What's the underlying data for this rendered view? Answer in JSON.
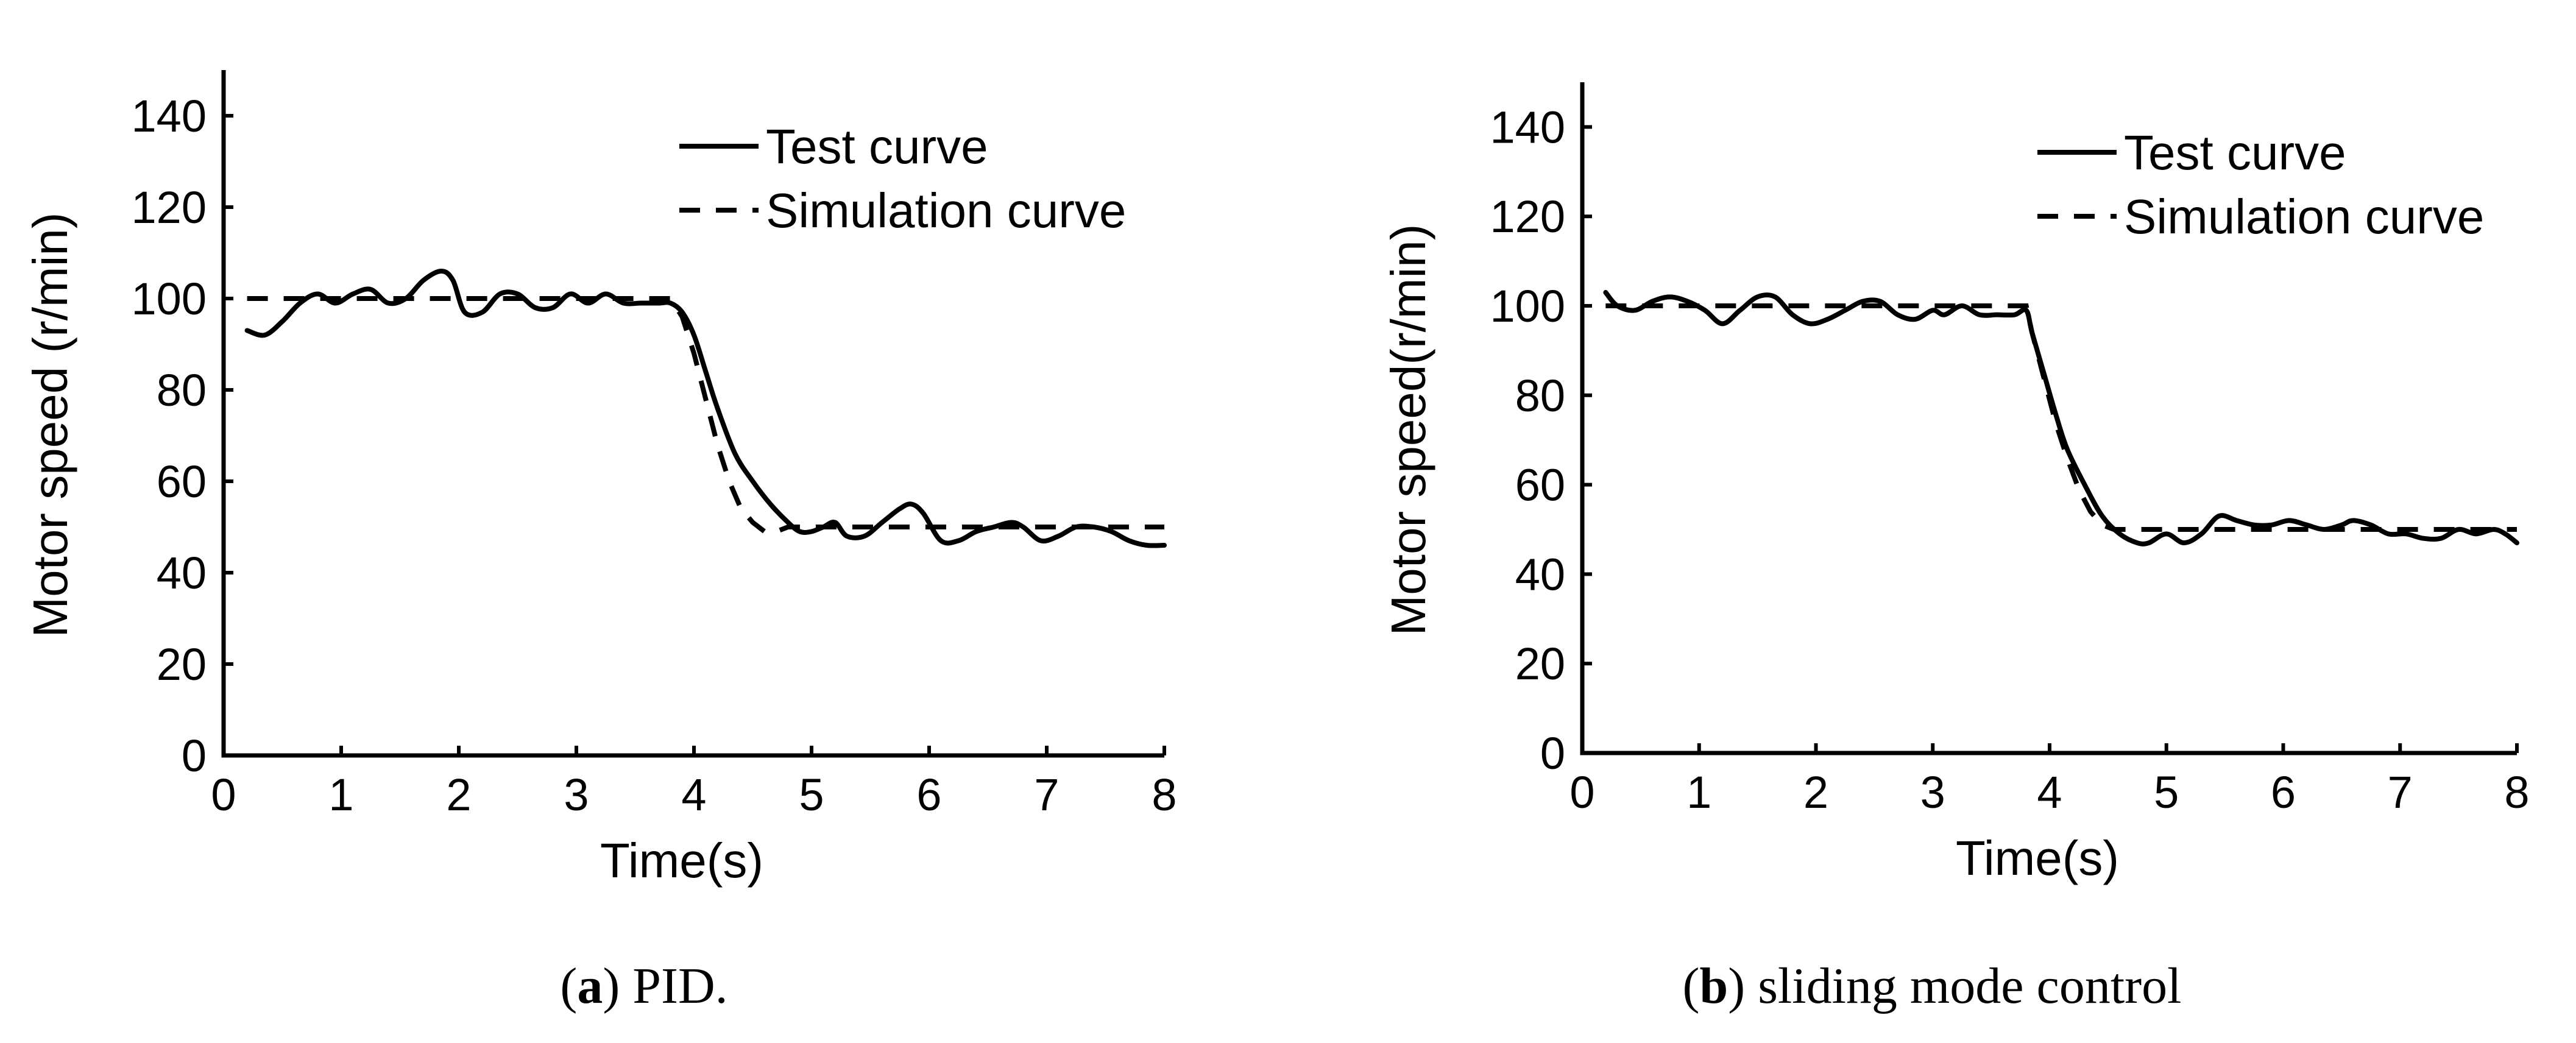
{
  "chart_data": [
    {
      "type": "line",
      "caption_letter": "a",
      "caption_text": ") PID.",
      "caption_open": "(",
      "xlabel": "Time(s)",
      "ylabel": "Motor speed (r/min)",
      "xlim": [
        0,
        8
      ],
      "ylim": [
        0,
        150
      ],
      "xticks": [
        0,
        1,
        2,
        3,
        4,
        5,
        6,
        7,
        8
      ],
      "yticks": [
        0,
        20,
        40,
        60,
        80,
        100,
        120,
        140
      ],
      "legend": [
        "Test curve",
        "Simulation curve"
      ],
      "legend_position": "top-right",
      "series": [
        {
          "name": "Test curve",
          "style": "solid",
          "x": [
            0.2,
            0.35,
            0.5,
            0.65,
            0.8,
            0.95,
            1.1,
            1.25,
            1.4,
            1.55,
            1.7,
            1.85,
            1.95,
            2.05,
            2.2,
            2.35,
            2.5,
            2.65,
            2.8,
            2.95,
            3.1,
            3.25,
            3.4,
            3.55,
            3.7,
            3.8,
            3.9,
            4.0,
            4.1,
            4.2,
            4.35,
            4.5,
            4.65,
            4.8,
            4.9,
            5.0,
            5.1,
            5.2,
            5.3,
            5.45,
            5.6,
            5.75,
            5.85,
            5.95,
            6.1,
            6.25,
            6.4,
            6.55,
            6.7,
            6.8,
            6.95,
            7.1,
            7.25,
            7.4,
            7.55,
            7.7,
            7.85,
            8.0
          ],
          "y": [
            93,
            92,
            95,
            99,
            101,
            99,
            101,
            102,
            99,
            100,
            104,
            106,
            104,
            97,
            97,
            101,
            101,
            98,
            98,
            101,
            99,
            101,
            99,
            99,
            99,
            99,
            97,
            92,
            84,
            76,
            66,
            60,
            55,
            51,
            49,
            49,
            50,
            51,
            48,
            48,
            51,
            54,
            55,
            53,
            47,
            47,
            49,
            50,
            51,
            50,
            47,
            48,
            50,
            50,
            49,
            47,
            46,
            46
          ]
        },
        {
          "name": "Simulation curve",
          "style": "dashed",
          "x": [
            0.2,
            3.8,
            3.9,
            4.0,
            4.1,
            4.2,
            4.3,
            4.4,
            4.5,
            4.6,
            4.7,
            4.8,
            4.9,
            5.0,
            8.0
          ],
          "y": [
            100,
            100,
            96,
            88,
            78,
            68,
            60,
            54,
            51,
            49,
            49,
            50,
            50,
            50,
            50
          ]
        }
      ]
    },
    {
      "type": "line",
      "caption_letter": "b",
      "caption_text": ") sliding mode control",
      "caption_open": "(",
      "xlabel": "Time(s)",
      "ylabel": "Motor speed(r/min)",
      "xlim": [
        0,
        8
      ],
      "ylim": [
        0,
        150
      ],
      "xticks": [
        0,
        1,
        2,
        3,
        4,
        5,
        6,
        7,
        8
      ],
      "yticks": [
        0,
        20,
        40,
        60,
        80,
        100,
        120,
        140
      ],
      "legend": [
        "Test curve",
        "Simulation curve"
      ],
      "legend_position": "top-right",
      "series": [
        {
          "name": "Test curve",
          "style": "solid",
          "x": [
            0.2,
            0.3,
            0.45,
            0.6,
            0.75,
            0.9,
            1.05,
            1.2,
            1.35,
            1.5,
            1.65,
            1.8,
            1.95,
            2.1,
            2.25,
            2.4,
            2.55,
            2.7,
            2.85,
            3.0,
            3.1,
            3.25,
            3.4,
            3.55,
            3.7,
            3.8,
            3.85,
            3.95,
            4.05,
            4.15,
            4.3,
            4.45,
            4.6,
            4.75,
            4.85,
            5.0,
            5.15,
            5.3,
            5.45,
            5.6,
            5.75,
            5.9,
            6.05,
            6.2,
            6.35,
            6.5,
            6.6,
            6.75,
            6.9,
            7.05,
            7.2,
            7.35,
            7.5,
            7.65,
            7.8,
            7.9,
            8.0
          ],
          "y": [
            103,
            100,
            99,
            101,
            102,
            101,
            99,
            96,
            99,
            102,
            102,
            98,
            96,
            97,
            99,
            101,
            101,
            98,
            97,
            99,
            98,
            100,
            98,
            98,
            98,
            99,
            94,
            85,
            76,
            68,
            60,
            53,
            49,
            47,
            47,
            49,
            47,
            49,
            53,
            52,
            51,
            51,
            52,
            51,
            50,
            51,
            52,
            51,
            49,
            49,
            48,
            48,
            50,
            49,
            50,
            49,
            47
          ]
        },
        {
          "name": "Simulation curve",
          "style": "dashed",
          "x": [
            0.2,
            3.8,
            3.85,
            3.95,
            4.05,
            4.15,
            4.25,
            4.35,
            4.45,
            4.55,
            4.7,
            8.0
          ],
          "y": [
            100,
            100,
            94,
            84,
            74,
            66,
            59,
            54,
            51,
            50,
            50,
            50
          ]
        }
      ]
    }
  ]
}
